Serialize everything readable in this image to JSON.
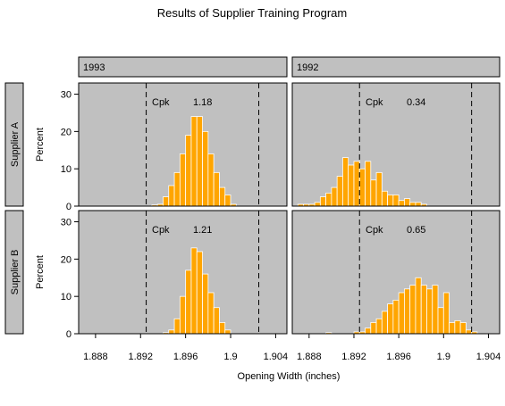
{
  "title": "Results of Supplier Training Program",
  "columns": [
    "1993",
    "1992"
  ],
  "rows": [
    "Supplier A",
    "Supplier B"
  ],
  "colors": {
    "panel_bg": "#c0c0c0",
    "bar_fill": "#ffa500",
    "bar_edge": "#ffffff",
    "frame": "#000000"
  },
  "chart_data": [
    {
      "type": "bar",
      "panel": "Supplier A / 1993",
      "xlabel": "Opening Width (inches)",
      "ylabel": "Percent",
      "xlim": [
        1.8865,
        1.905
      ],
      "ylim": [
        0,
        33
      ],
      "xticks": [
        1.888,
        1.892,
        1.896,
        1.9,
        1.904
      ],
      "yticks": [
        0,
        10,
        20,
        30
      ],
      "bin_width": 0.0005,
      "reference_lines": [
        1.8925,
        1.9025
      ],
      "annotation": {
        "label": "Cpk",
        "value": "1.18"
      },
      "bins": [
        1.8925,
        1.893,
        1.8935,
        1.894,
        1.8945,
        1.895,
        1.8955,
        1.896,
        1.8965,
        1.897,
        1.8975,
        1.898,
        1.8985,
        1.899,
        1.8995,
        1.9,
        1.9005,
        1.901,
        1.9015,
        1.902
      ],
      "values": [
        0,
        0.3,
        0.5,
        2.5,
        5.5,
        9,
        14,
        19,
        24,
        24,
        20,
        14,
        9,
        5,
        3,
        0.5,
        0,
        0,
        0,
        0
      ]
    },
    {
      "type": "bar",
      "panel": "Supplier A / 1992",
      "xlabel": "Opening Width (inches)",
      "ylabel": "Percent",
      "xlim": [
        1.8865,
        1.905
      ],
      "ylim": [
        0,
        33
      ],
      "xticks": [
        1.888,
        1.892,
        1.896,
        1.9,
        1.904
      ],
      "yticks": [
        0,
        10,
        20,
        30
      ],
      "bin_width": 0.0005,
      "reference_lines": [
        1.8925,
        1.9025
      ],
      "annotation": {
        "label": "Cpk",
        "value": "0.34"
      },
      "bins": [
        1.8865,
        1.887,
        1.8875,
        1.888,
        1.8885,
        1.889,
        1.8895,
        1.89,
        1.8905,
        1.891,
        1.8915,
        1.892,
        1.8925,
        1.893,
        1.8935,
        1.894,
        1.8945,
        1.895,
        1.8955,
        1.896,
        1.8965,
        1.897,
        1.8975,
        1.898,
        1.8985,
        1.899,
        1.8995,
        1.9,
        1.9005,
        1.901,
        1.9015,
        1.902,
        1.9025,
        1.903,
        1.9035,
        1.904,
        1.9045
      ],
      "values": [
        0,
        0.5,
        0.5,
        0.5,
        1,
        2.5,
        3.5,
        5,
        8,
        13,
        11,
        12,
        10,
        12,
        7,
        9,
        4,
        3,
        3,
        1.5,
        2,
        1,
        1,
        0.5,
        0,
        0,
        0,
        0,
        0,
        0,
        0,
        0,
        0,
        0,
        0,
        0,
        0
      ]
    },
    {
      "type": "bar",
      "panel": "Supplier B / 1993",
      "xlabel": "Opening Width (inches)",
      "ylabel": "Percent",
      "xlim": [
        1.8865,
        1.905
      ],
      "ylim": [
        0,
        33
      ],
      "xticks": [
        1.888,
        1.892,
        1.896,
        1.9,
        1.904
      ],
      "yticks": [
        0,
        10,
        20,
        30
      ],
      "bin_width": 0.0005,
      "reference_lines": [
        1.8925,
        1.9025
      ],
      "annotation": {
        "label": "Cpk",
        "value": "1.21"
      },
      "bins": [
        1.894,
        1.8945,
        1.895,
        1.8955,
        1.896,
        1.8965,
        1.897,
        1.8975,
        1.898,
        1.8985,
        1.899,
        1.8995,
        1.9,
        1.9005,
        1.901,
        1.9015
      ],
      "values": [
        0.3,
        1,
        4,
        10,
        17,
        23,
        22,
        16,
        11,
        7,
        3,
        1,
        0,
        0,
        0,
        0
      ]
    },
    {
      "type": "bar",
      "panel": "Supplier B / 1992",
      "xlabel": "Opening Width (inches)",
      "ylabel": "Percent",
      "xlim": [
        1.8865,
        1.905
      ],
      "ylim": [
        0,
        33
      ],
      "xticks": [
        1.888,
        1.892,
        1.896,
        1.9,
        1.904
      ],
      "yticks": [
        0,
        10,
        20,
        30
      ],
      "bin_width": 0.0005,
      "reference_lines": [
        1.8925,
        1.9025
      ],
      "annotation": {
        "label": "Cpk",
        "value": "0.65"
      },
      "bins": [
        1.8895,
        1.89,
        1.8905,
        1.891,
        1.8915,
        1.892,
        1.8925,
        1.893,
        1.8935,
        1.894,
        1.8945,
        1.895,
        1.8955,
        1.896,
        1.8965,
        1.897,
        1.8975,
        1.898,
        1.8985,
        1.899,
        1.8995,
        1.9,
        1.9005,
        1.901,
        1.9015,
        1.902,
        1.9025,
        1.903,
        1.9035,
        1.904
      ],
      "values": [
        0.3,
        0,
        0,
        0,
        0,
        0.5,
        0.5,
        1.5,
        3,
        4,
        6,
        8,
        9,
        11,
        12,
        13,
        15,
        13,
        12,
        13,
        7,
        11,
        3,
        3.5,
        3,
        1,
        0.5,
        0,
        0,
        0
      ]
    }
  ]
}
